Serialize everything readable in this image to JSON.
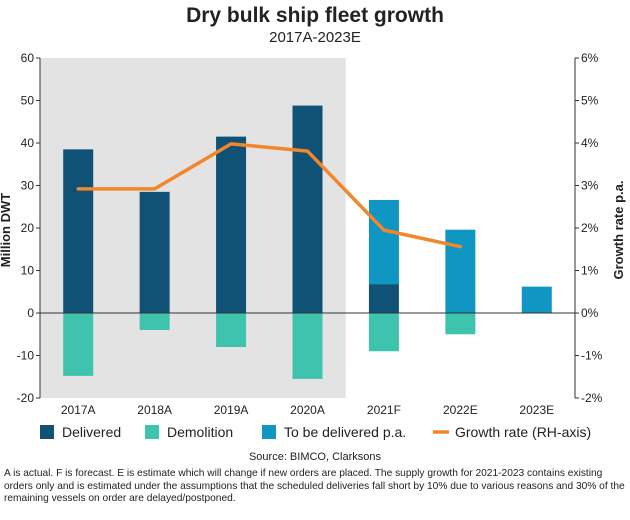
{
  "chart_data": {
    "type": "bar",
    "title": "Dry bulk ship fleet growth",
    "subtitle": "2017A-2023E",
    "ylabel": "Million DWT",
    "y2label": "Growth rate p.a.",
    "ylim": [
      -20,
      60
    ],
    "y_ticks": [
      "60",
      "50",
      "40",
      "30",
      "20",
      "10",
      "0",
      "-10",
      "-20"
    ],
    "y2lim": [
      -0.02,
      0.06
    ],
    "y2_ticks": [
      "6%",
      "5%",
      "4%",
      "3%",
      "2%",
      "1%",
      "0%",
      "-1%",
      "-2%"
    ],
    "categories": [
      "2017A",
      "2018A",
      "2019A",
      "2020A",
      "2021F",
      "2022E",
      "2023E"
    ],
    "series": [
      {
        "name": "Delivered",
        "type": "bar",
        "color": "#0f5275",
        "values": [
          38.5,
          28.5,
          41.5,
          48.8,
          6.8,
          0,
          0
        ]
      },
      {
        "name": "Demolition",
        "type": "bar",
        "color": "#3ec4ae",
        "values": [
          -14.8,
          -4.0,
          -8.0,
          -15.5,
          -9.0,
          -5.0,
          0
        ]
      },
      {
        "name": "To be delivered p.a.",
        "type": "bar",
        "color": "#0f96c2",
        "values": [
          0,
          0,
          0,
          0,
          19.8,
          19.6,
          6.2
        ]
      },
      {
        "name": "Growth rate (RH-axis)",
        "type": "line",
        "color": "#f2862a",
        "values": [
          0.0292,
          0.0292,
          0.0398,
          0.0381,
          0.0195,
          0.0156,
          null
        ]
      }
    ],
    "shaded_region": {
      "from": "2017A",
      "to": "2020A",
      "color": "#e3e3e3"
    },
    "legend_position": "bottom",
    "grid": false
  },
  "source": "Source: BIMCO, Clarksons",
  "footnote": "A is actual. F is forecast. E is estimate which will change if new orders are placed. The supply growth for 2021-2023 contains existing orders only and is estimated under the assumptions that the scheduled deliveries fall short by 10% due to various reasons and 30% of the remaining vessels on order are delayed/postponed."
}
